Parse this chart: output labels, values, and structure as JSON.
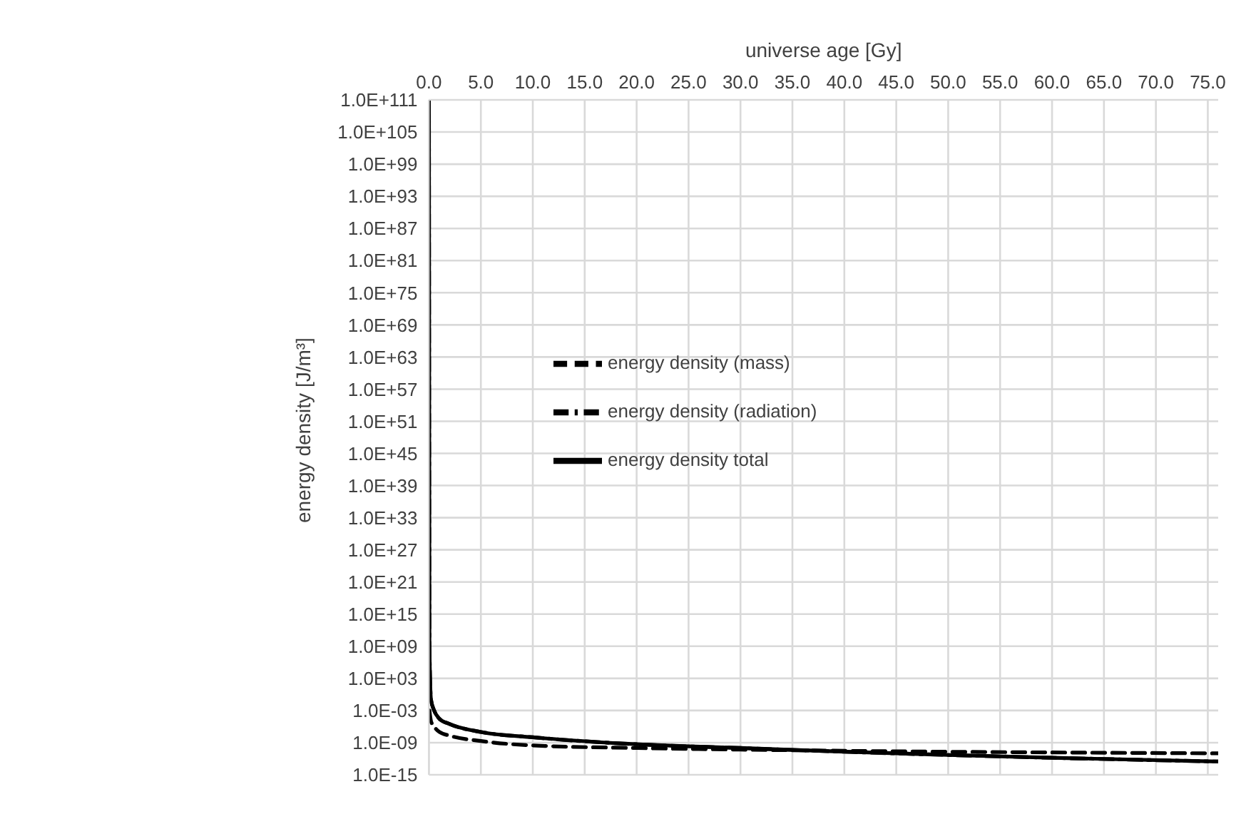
{
  "chart_data": {
    "type": "line",
    "xlabel": "universe age [Gy]",
    "ylabel": "energy density [J/m³]",
    "log": "y",
    "grid": true,
    "legend": "center",
    "marker": "none",
    "xlim": [
      0,
      76
    ],
    "xticks": [
      {
        "value": 0,
        "label": "0.0"
      },
      {
        "value": 5,
        "label": "5.0"
      },
      {
        "value": 10,
        "label": "10.0"
      },
      {
        "value": 15,
        "label": "15.0"
      },
      {
        "value": 20,
        "label": "20.0"
      },
      {
        "value": 25,
        "label": "25.0"
      },
      {
        "value": 30,
        "label": "30.0"
      },
      {
        "value": 35,
        "label": "35.0"
      },
      {
        "value": 40,
        "label": "40.0"
      },
      {
        "value": 45,
        "label": "45.0"
      },
      {
        "value": 50,
        "label": "50.0"
      },
      {
        "value": 55,
        "label": "55.0"
      },
      {
        "value": 60,
        "label": "60.0"
      },
      {
        "value": 65,
        "label": "65.0"
      },
      {
        "value": 70,
        "label": "70.0"
      },
      {
        "value": 75,
        "label": "75.0"
      }
    ],
    "ylim": [
      1e-15,
      1e+111
    ],
    "yticks": [
      {
        "value": 1e-15,
        "label": "1.0E-15"
      },
      {
        "value": 1e-09,
        "label": "1.0E-09"
      },
      {
        "value": 0.001,
        "label": "1.0E-03"
      },
      {
        "value": 1000.0,
        "label": "1.0E+03"
      },
      {
        "value": 1000000000.0,
        "label": "1.0E+09"
      },
      {
        "value": 1000000000000000.0,
        "label": "1.0E+15"
      },
      {
        "value": 1e+21,
        "label": "1.0E+21"
      },
      {
        "value": 1e+27,
        "label": "1.0E+27"
      },
      {
        "value": 1e+33,
        "label": "1.0E+33"
      },
      {
        "value": 1e+39,
        "label": "1.0E+39"
      },
      {
        "value": 1e+45,
        "label": "1.0E+45"
      },
      {
        "value": 1e+51,
        "label": "1.0E+51"
      },
      {
        "value": 1e+57,
        "label": "1.0E+57"
      },
      {
        "value": 1e+63,
        "label": "1.0E+63"
      },
      {
        "value": 1e+69,
        "label": "1.0E+69"
      },
      {
        "value": 1e+75,
        "label": "1.0E+75"
      },
      {
        "value": 1e+81,
        "label": "1.0E+81"
      },
      {
        "value": 1e+87,
        "label": "1.0E+87"
      },
      {
        "value": 1e+93,
        "label": "1.0E+93"
      },
      {
        "value": 1e+99,
        "label": "1.0E+99"
      },
      {
        "value": 1e+105,
        "label": "1.0E+105"
      },
      {
        "value": 1e+111,
        "label": "1.0E+111"
      }
    ],
    "series": [
      {
        "name": "energy density total",
        "color": "#000000",
        "line_style": "solid",
        "x": [
          0.001,
          0.05,
          0.2,
          0.5,
          1,
          2,
          5,
          10,
          20,
          30,
          40,
          50,
          60,
          76
        ],
        "values": [
          1e+111,
          1000000000.0,
          0.1,
          0.001,
          3e-05,
          3e-06,
          1e-07,
          1e-08,
          5e-10,
          1e-10,
          2e-11,
          5e-12,
          1.5e-12,
          3e-13
        ]
      },
      {
        "name": "energy density (radiation)",
        "color": "#000000",
        "line_style": "dashdot",
        "x": [
          0.001,
          0.05,
          0.2,
          0.5,
          1,
          2,
          5,
          10,
          20,
          30,
          40,
          50,
          60,
          76
        ],
        "values": [
          1e+111,
          1000000000.0,
          0.1,
          0.001,
          3e-05,
          3e-06,
          1e-07,
          1e-08,
          5e-10,
          1e-10,
          2e-11,
          5e-12,
          1.5e-12,
          3e-13
        ]
      },
      {
        "name": "energy density (mass)",
        "color": "#000000",
        "line_style": "dashed",
        "x": [
          0.05,
          0.2,
          0.5,
          1,
          2,
          5,
          10,
          20,
          30,
          40,
          50,
          60,
          76
        ],
        "values": [
          0.001,
          1e-05,
          1e-06,
          1e-07,
          2e-08,
          2e-09,
          3e-10,
          1e-10,
          5e-11,
          3e-11,
          2e-11,
          1.5e-11,
          1e-11
        ]
      }
    ]
  }
}
